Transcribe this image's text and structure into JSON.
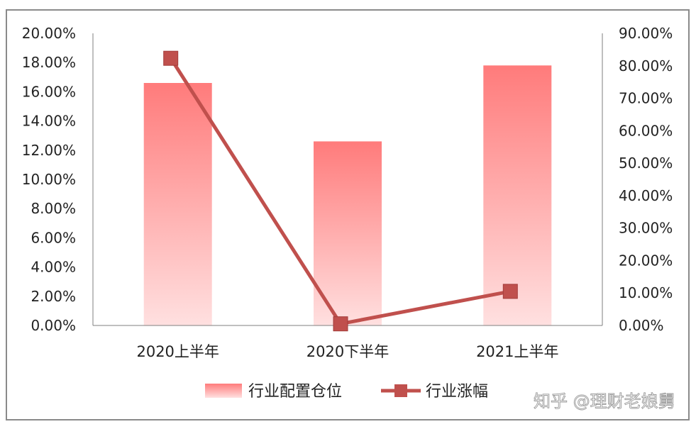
{
  "chart_data": {
    "type": "bar",
    "categories": [
      "2020上半年",
      "2020下半年",
      "2021上半年"
    ],
    "series": [
      {
        "name": "行业配置仓位",
        "type": "bar",
        "axis": "left",
        "values": [
          16.6,
          12.6,
          17.8
        ],
        "color": "#ff7b7b"
      },
      {
        "name": "行业涨幅",
        "type": "line",
        "axis": "right",
        "values": [
          82.3,
          0.5,
          10.5
        ],
        "color": "#c0504d"
      }
    ],
    "y_left": {
      "range": [
        0,
        20
      ],
      "ticks": [
        "0.00%",
        "2.00%",
        "4.00%",
        "6.00%",
        "8.00%",
        "10.00%",
        "12.00%",
        "14.00%",
        "16.00%",
        "18.00%",
        "20.00%"
      ]
    },
    "y_right": {
      "range": [
        0,
        90
      ],
      "ticks": [
        "0.00%",
        "10.00%",
        "20.00%",
        "30.00%",
        "40.00%",
        "50.00%",
        "60.00%",
        "70.00%",
        "80.00%",
        "90.00%"
      ]
    },
    "grid": false,
    "legend_position": "bottom"
  },
  "watermark": "知乎 @理财老娘舅"
}
